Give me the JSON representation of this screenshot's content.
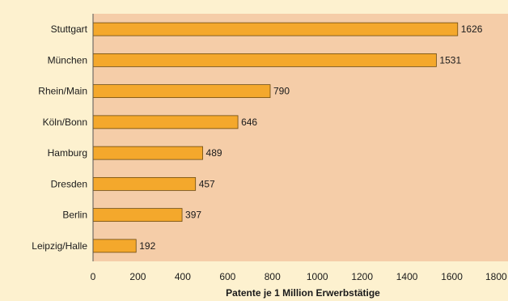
{
  "colors": {
    "background": "#fdf1cf",
    "plot_area": "#f5cda8",
    "bar_fill": "#f4a82c",
    "bar_stroke": "#6b4a10"
  },
  "chart_data": {
    "type": "bar",
    "orientation": "horizontal",
    "title": "",
    "xlabel": "Patente je 1 Million Erwerbstätige",
    "ylabel": "",
    "categories": [
      "Stuttgart",
      "München",
      "Rhein/Main",
      "Köln/Bonn",
      "Hamburg",
      "Dresden",
      "Berlin",
      "Leipzig/Halle"
    ],
    "values": [
      1626,
      1531,
      790,
      646,
      489,
      457,
      397,
      192
    ],
    "xlim": [
      0,
      1800
    ],
    "xticks": [
      0,
      200,
      400,
      600,
      800,
      1000,
      1200,
      1400,
      1600,
      1800
    ],
    "grid": false,
    "legend": "none"
  }
}
